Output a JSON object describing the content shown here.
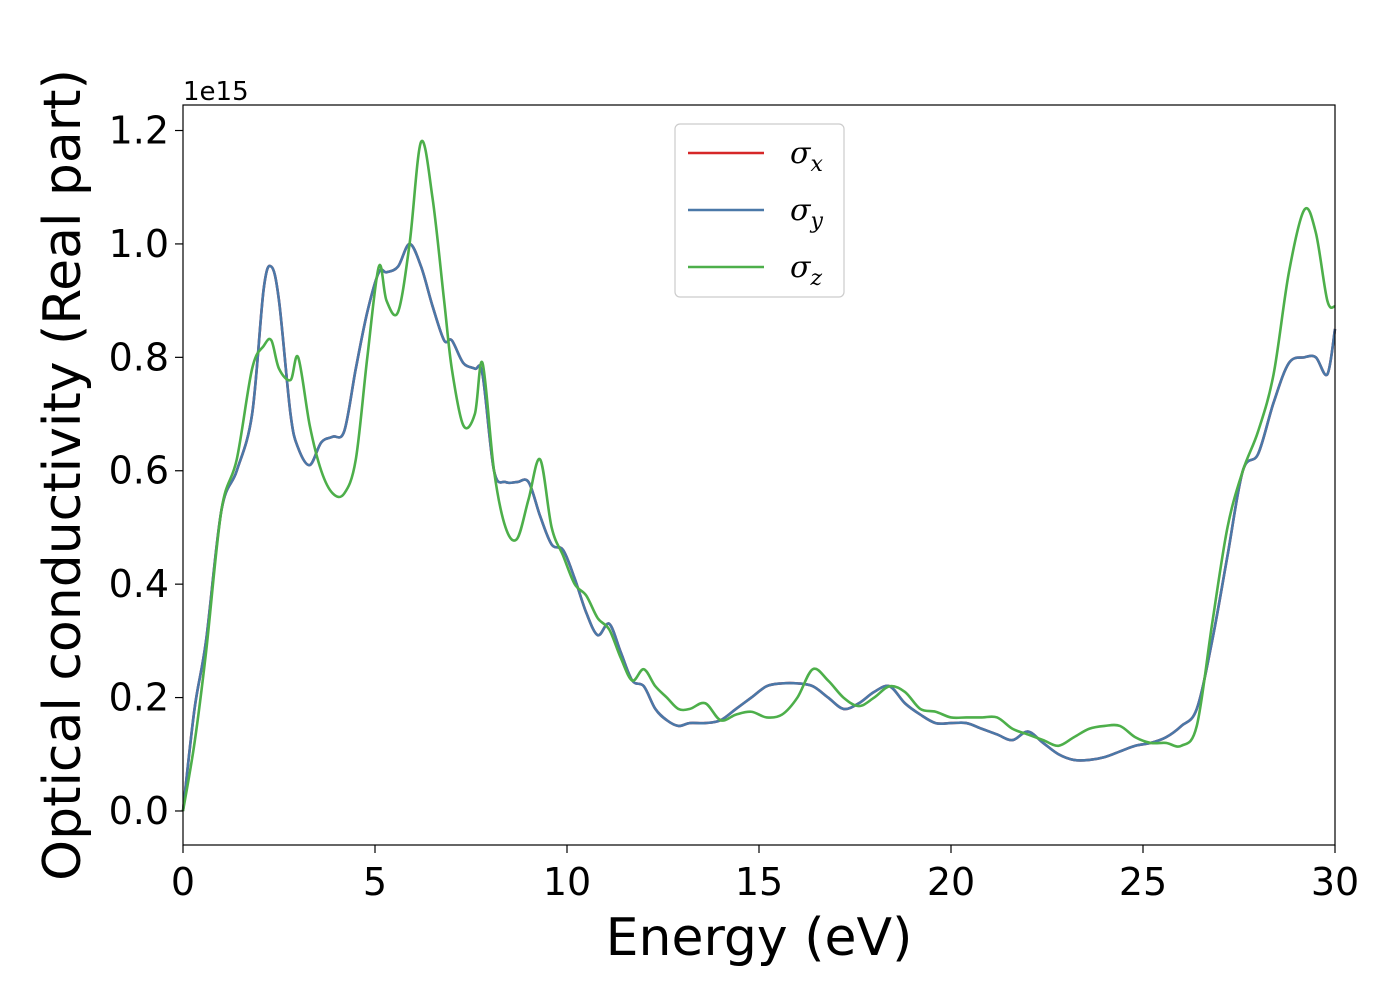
{
  "chart_data": {
    "type": "line",
    "xlabel": "Energy (eV)",
    "ylabel": "Optical conductivity (Real part)",
    "offset_label": "1e15",
    "xlim": [
      0,
      30
    ],
    "ylim": [
      -0.06,
      1.245
    ],
    "xticks": [
      0,
      5,
      10,
      15,
      20,
      25,
      30
    ],
    "xtick_labels": [
      "0",
      "5",
      "10",
      "15",
      "20",
      "25",
      "30"
    ],
    "yticks": [
      0.0,
      0.2,
      0.4,
      0.6,
      0.8,
      1.0,
      1.2
    ],
    "ytick_labels": [
      "0.0",
      "0.2",
      "0.4",
      "0.6",
      "0.8",
      "1.0",
      "1.2"
    ],
    "grid": false,
    "legend_position": "top-center",
    "series": [
      {
        "name": "σx",
        "legend_base": "σ",
        "legend_sub": "x",
        "color": "#d62728",
        "x": [
          0,
          0.3,
          0.6,
          1.0,
          1.4,
          1.8,
          2.1,
          2.3,
          2.5,
          2.8,
          3.0,
          3.3,
          3.6,
          3.9,
          4.2,
          4.5,
          4.8,
          5.1,
          5.3,
          5.6,
          5.9,
          6.2,
          6.5,
          6.8,
          7.0,
          7.3,
          7.6,
          7.8,
          8.1,
          8.4,
          8.7,
          9.0,
          9.3,
          9.6,
          9.9,
          10.2,
          10.5,
          10.8,
          11.1,
          11.4,
          11.7,
          12.0,
          12.3,
          12.6,
          12.9,
          13.2,
          13.6,
          14.0,
          14.4,
          14.8,
          15.2,
          15.6,
          16.0,
          16.4,
          16.8,
          17.2,
          17.6,
          18.0,
          18.4,
          18.8,
          19.2,
          19.6,
          20.0,
          20.4,
          20.8,
          21.2,
          21.6,
          22.0,
          22.4,
          22.8,
          23.2,
          23.6,
          24.0,
          24.4,
          24.8,
          25.2,
          25.6,
          26.0,
          26.4,
          26.8,
          27.2,
          27.6,
          28.0,
          28.4,
          28.8,
          29.2,
          29.5,
          29.8,
          30.0
        ],
        "y": [
          0.0,
          0.18,
          0.3,
          0.53,
          0.6,
          0.7,
          0.92,
          0.96,
          0.9,
          0.7,
          0.64,
          0.61,
          0.65,
          0.66,
          0.67,
          0.78,
          0.88,
          0.95,
          0.95,
          0.96,
          1.0,
          0.96,
          0.89,
          0.83,
          0.83,
          0.79,
          0.78,
          0.77,
          0.6,
          0.58,
          0.58,
          0.58,
          0.52,
          0.47,
          0.46,
          0.41,
          0.35,
          0.31,
          0.33,
          0.28,
          0.23,
          0.22,
          0.18,
          0.16,
          0.15,
          0.155,
          0.155,
          0.16,
          0.18,
          0.2,
          0.22,
          0.225,
          0.225,
          0.22,
          0.2,
          0.18,
          0.19,
          0.21,
          0.22,
          0.19,
          0.17,
          0.155,
          0.155,
          0.155,
          0.145,
          0.135,
          0.125,
          0.14,
          0.12,
          0.1,
          0.09,
          0.09,
          0.095,
          0.105,
          0.115,
          0.12,
          0.13,
          0.15,
          0.18,
          0.3,
          0.45,
          0.6,
          0.63,
          0.72,
          0.79,
          0.8,
          0.8,
          0.77,
          0.85
        ]
      },
      {
        "name": "σy",
        "legend_base": "σ",
        "legend_sub": "y",
        "color": "#4a78a8",
        "x": [
          0,
          0.3,
          0.6,
          1.0,
          1.4,
          1.8,
          2.1,
          2.3,
          2.5,
          2.8,
          3.0,
          3.3,
          3.6,
          3.9,
          4.2,
          4.5,
          4.8,
          5.1,
          5.3,
          5.6,
          5.9,
          6.2,
          6.5,
          6.8,
          7.0,
          7.3,
          7.6,
          7.8,
          8.1,
          8.4,
          8.7,
          9.0,
          9.3,
          9.6,
          9.9,
          10.2,
          10.5,
          10.8,
          11.1,
          11.4,
          11.7,
          12.0,
          12.3,
          12.6,
          12.9,
          13.2,
          13.6,
          14.0,
          14.4,
          14.8,
          15.2,
          15.6,
          16.0,
          16.4,
          16.8,
          17.2,
          17.6,
          18.0,
          18.4,
          18.8,
          19.2,
          19.6,
          20.0,
          20.4,
          20.8,
          21.2,
          21.6,
          22.0,
          22.4,
          22.8,
          23.2,
          23.6,
          24.0,
          24.4,
          24.8,
          25.2,
          25.6,
          26.0,
          26.4,
          26.8,
          27.2,
          27.6,
          28.0,
          28.4,
          28.8,
          29.2,
          29.5,
          29.8,
          30.0
        ],
        "y": [
          0.0,
          0.18,
          0.3,
          0.53,
          0.6,
          0.7,
          0.92,
          0.96,
          0.9,
          0.7,
          0.64,
          0.61,
          0.65,
          0.66,
          0.67,
          0.78,
          0.88,
          0.95,
          0.95,
          0.96,
          1.0,
          0.96,
          0.89,
          0.83,
          0.83,
          0.79,
          0.78,
          0.77,
          0.6,
          0.58,
          0.58,
          0.58,
          0.52,
          0.47,
          0.46,
          0.41,
          0.35,
          0.31,
          0.33,
          0.28,
          0.23,
          0.22,
          0.18,
          0.16,
          0.15,
          0.155,
          0.155,
          0.16,
          0.18,
          0.2,
          0.22,
          0.225,
          0.225,
          0.22,
          0.2,
          0.18,
          0.19,
          0.21,
          0.22,
          0.19,
          0.17,
          0.155,
          0.155,
          0.155,
          0.145,
          0.135,
          0.125,
          0.14,
          0.12,
          0.1,
          0.09,
          0.09,
          0.095,
          0.105,
          0.115,
          0.12,
          0.13,
          0.15,
          0.18,
          0.3,
          0.45,
          0.6,
          0.63,
          0.72,
          0.79,
          0.8,
          0.8,
          0.77,
          0.85
        ]
      },
      {
        "name": "σz",
        "legend_base": "σ",
        "legend_sub": "z",
        "color": "#4daf4a",
        "x": [
          0,
          0.3,
          0.6,
          1.0,
          1.4,
          1.8,
          2.1,
          2.3,
          2.5,
          2.8,
          3.0,
          3.3,
          3.6,
          3.9,
          4.2,
          4.5,
          4.8,
          5.1,
          5.3,
          5.6,
          5.9,
          6.2,
          6.5,
          6.8,
          7.0,
          7.3,
          7.6,
          7.8,
          8.1,
          8.4,
          8.7,
          9.0,
          9.3,
          9.6,
          9.9,
          10.2,
          10.5,
          10.8,
          11.1,
          11.4,
          11.7,
          12.0,
          12.3,
          12.6,
          12.9,
          13.2,
          13.6,
          14.0,
          14.4,
          14.8,
          15.2,
          15.6,
          16.0,
          16.4,
          16.8,
          17.2,
          17.6,
          18.0,
          18.4,
          18.8,
          19.2,
          19.6,
          20.0,
          20.4,
          20.8,
          21.2,
          21.6,
          22.0,
          22.4,
          22.8,
          23.2,
          23.6,
          24.0,
          24.4,
          24.8,
          25.2,
          25.6,
          26.0,
          26.4,
          26.8,
          27.2,
          27.6,
          28.0,
          28.4,
          28.8,
          29.2,
          29.5,
          29.8,
          30.0
        ],
        "y": [
          0.0,
          0.12,
          0.28,
          0.53,
          0.62,
          0.78,
          0.82,
          0.83,
          0.78,
          0.76,
          0.8,
          0.68,
          0.6,
          0.56,
          0.56,
          0.62,
          0.8,
          0.96,
          0.9,
          0.88,
          1.0,
          1.18,
          1.08,
          0.9,
          0.78,
          0.68,
          0.7,
          0.79,
          0.6,
          0.5,
          0.48,
          0.55,
          0.62,
          0.5,
          0.45,
          0.4,
          0.38,
          0.34,
          0.32,
          0.27,
          0.23,
          0.25,
          0.22,
          0.2,
          0.18,
          0.18,
          0.19,
          0.16,
          0.17,
          0.175,
          0.165,
          0.17,
          0.2,
          0.25,
          0.23,
          0.2,
          0.185,
          0.2,
          0.22,
          0.21,
          0.18,
          0.175,
          0.165,
          0.165,
          0.165,
          0.165,
          0.145,
          0.135,
          0.125,
          0.115,
          0.13,
          0.145,
          0.15,
          0.15,
          0.13,
          0.12,
          0.12,
          0.115,
          0.15,
          0.33,
          0.5,
          0.6,
          0.67,
          0.77,
          0.95,
          1.06,
          1.02,
          0.9,
          0.89
        ]
      }
    ]
  }
}
